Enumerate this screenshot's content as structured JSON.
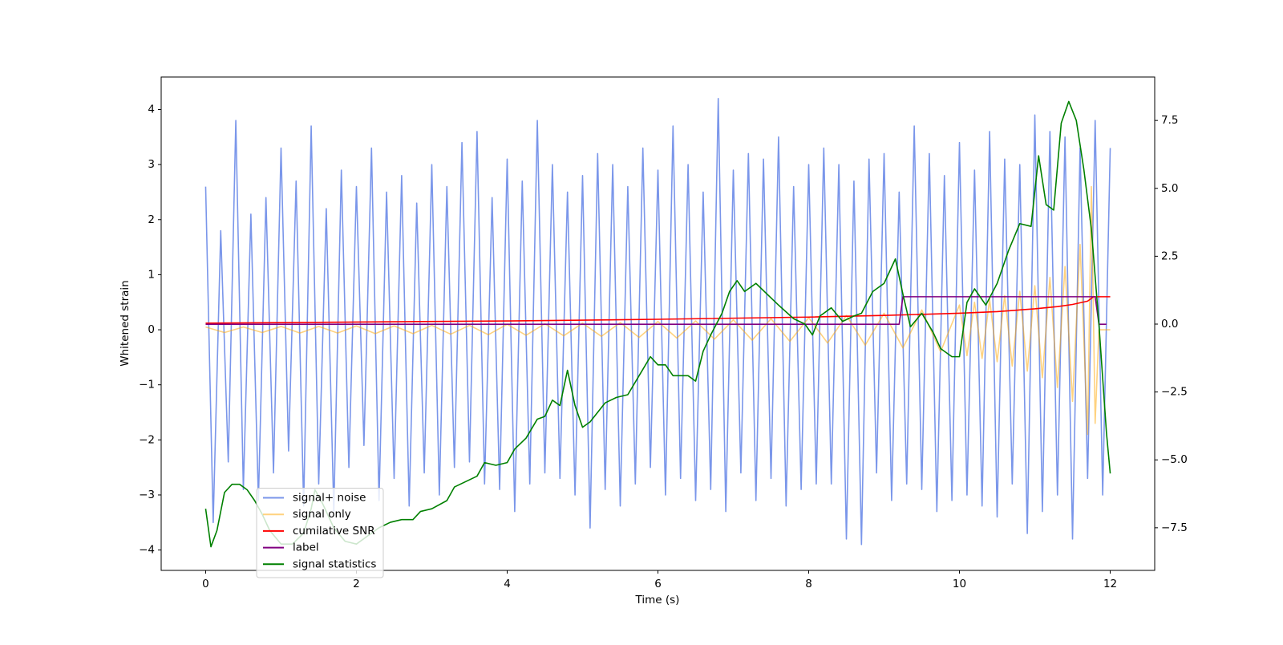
{
  "chart_data": {
    "type": "line",
    "xlabel": "Time (s)",
    "ylabel": "Whitened strain",
    "xlim": [
      -0.59,
      12.59
    ],
    "ylim": [
      -4.37,
      4.59
    ],
    "y2lim": [
      -9.07,
      9.1
    ],
    "xticks": [
      0,
      2,
      4,
      6,
      8,
      10,
      12
    ],
    "yticks": [
      {
        "value": -4,
        "label": "−4"
      },
      {
        "value": -3,
        "label": "−3"
      },
      {
        "value": -2,
        "label": "−2"
      },
      {
        "value": -1,
        "label": "−1"
      },
      0,
      1,
      2,
      3,
      4
    ],
    "y2ticks": [
      {
        "value": -7.5,
        "label": "−7.5"
      },
      {
        "value": -5,
        "label": "−5.0"
      },
      {
        "value": -2.5,
        "label": "−2.5"
      },
      {
        "value": 0,
        "label": "0.0"
      },
      2.5,
      {
        "value": 5,
        "label": "5.0"
      },
      7.5
    ],
    "legend": "lower left",
    "series": [
      {
        "name": "signal+ noise",
        "color": "#4169e1",
        "alpha": 0.7,
        "x": [
          0,
          0.1,
          0.2,
          0.3,
          0.4,
          0.5,
          0.6,
          0.7,
          0.8,
          0.9,
          1,
          1.1,
          1.2,
          1.3,
          1.4,
          1.5,
          1.6,
          1.7,
          1.8,
          1.9,
          2,
          2.1,
          2.2,
          2.3,
          2.4,
          2.5,
          2.6,
          2.7,
          2.8,
          2.9,
          3,
          3.1,
          3.2,
          3.3,
          3.4,
          3.5,
          3.6,
          3.7,
          3.8,
          3.9,
          4,
          4.1,
          4.2,
          4.3,
          4.4,
          4.5,
          4.6,
          4.7,
          4.8,
          4.9,
          5,
          5.1,
          5.2,
          5.3,
          5.4,
          5.5,
          5.6,
          5.7,
          5.8,
          5.9,
          6,
          6.1,
          6.2,
          6.3,
          6.4,
          6.5,
          6.6,
          6.7,
          6.8,
          6.9,
          7,
          7.1,
          7.2,
          7.3,
          7.4,
          7.5,
          7.6,
          7.7,
          7.8,
          7.9,
          8,
          8.1,
          8.2,
          8.3,
          8.4,
          8.5,
          8.6,
          8.7,
          8.8,
          8.9,
          9,
          9.1,
          9.2,
          9.3,
          9.4,
          9.5,
          9.6,
          9.7,
          9.8,
          9.9,
          10,
          10.1,
          10.2,
          10.3,
          10.4,
          10.5,
          10.6,
          10.7,
          10.8,
          10.9,
          11,
          11.1,
          11.2,
          11.3,
          11.4,
          11.5,
          11.6,
          11.7,
          11.8,
          11.9,
          12
        ],
        "values": [
          2.6,
          -3.5,
          1.8,
          -2.4,
          3.8,
          -2.9,
          2.1,
          -3.1,
          2.4,
          -2.6,
          3.3,
          -2.2,
          2.7,
          -3.2,
          3.7,
          -2.8,
          2.2,
          -3.3,
          2.9,
          -2.5,
          2.6,
          -2.1,
          3.3,
          -3.1,
          2.5,
          -2.7,
          2.8,
          -3.2,
          2.3,
          -2.6,
          3.0,
          -3.0,
          2.6,
          -2.5,
          3.4,
          -2.4,
          3.6,
          -2.8,
          2.4,
          -2.9,
          3.1,
          -3.3,
          2.7,
          -2.8,
          3.8,
          -2.6,
          3.0,
          -2.7,
          2.5,
          -3.0,
          2.8,
          -3.6,
          3.2,
          -2.9,
          3.0,
          -3.2,
          2.6,
          -2.8,
          3.3,
          -2.5,
          2.9,
          -3.0,
          3.7,
          -2.7,
          3.0,
          -3.1,
          2.5,
          -2.9,
          4.2,
          -3.3,
          2.9,
          -2.6,
          3.2,
          -3.1,
          3.1,
          -2.7,
          3.5,
          -3.2,
          2.6,
          -2.9,
          3.0,
          -2.8,
          3.3,
          -2.8,
          3.0,
          -3.8,
          2.7,
          -3.9,
          3.1,
          -2.6,
          3.2,
          -3.1,
          2.5,
          -2.8,
          3.7,
          -2.9,
          3.2,
          -3.3,
          2.8,
          -3.1,
          3.4,
          -3.0,
          2.9,
          -3.2,
          3.6,
          -3.4,
          3.1,
          -2.8,
          3.0,
          -3.7,
          3.9,
          -3.3,
          3.6,
          -3.0,
          3.5,
          -3.8,
          3.3,
          -2.7,
          3.8,
          -3.0,
          3.3
        ]
      },
      {
        "name": "signal only",
        "color": "#ffa500",
        "alpha": 0.5,
        "x": [
          0,
          0.25,
          0.5,
          0.75,
          1,
          1.25,
          1.5,
          1.75,
          2,
          2.25,
          2.5,
          2.75,
          3,
          3.25,
          3.5,
          3.75,
          4,
          4.25,
          4.5,
          4.75,
          5,
          5.25,
          5.5,
          5.75,
          6,
          6.25,
          6.5,
          6.75,
          7,
          7.25,
          7.5,
          7.75,
          8,
          8.25,
          8.5,
          8.75,
          9,
          9.25,
          9.5,
          9.75,
          10,
          10.1,
          10.2,
          10.3,
          10.4,
          10.5,
          10.6,
          10.7,
          10.8,
          10.9,
          11,
          11.1,
          11.2,
          11.3,
          11.4,
          11.5,
          11.6,
          11.7,
          11.75,
          11.8,
          11.85,
          12
        ],
        "values": [
          0.05,
          -0.05,
          0.05,
          -0.05,
          0.06,
          -0.06,
          0.06,
          -0.06,
          0.07,
          -0.07,
          0.07,
          -0.07,
          0.08,
          -0.08,
          0.08,
          -0.09,
          0.1,
          -0.1,
          0.11,
          -0.11,
          0.12,
          -0.12,
          0.13,
          -0.14,
          0.15,
          -0.15,
          0.16,
          -0.17,
          0.18,
          -0.19,
          0.2,
          -0.21,
          0.22,
          -0.24,
          0.26,
          -0.28,
          0.3,
          -0.33,
          0.36,
          -0.4,
          0.45,
          -0.47,
          0.5,
          -0.52,
          0.55,
          -0.58,
          0.62,
          -0.66,
          0.7,
          -0.75,
          0.8,
          -0.87,
          0.95,
          -1.05,
          1.15,
          -1.3,
          1.55,
          -1.9,
          2.6,
          -1.7,
          0,
          0
        ]
      },
      {
        "name": "cumilative SNR",
        "color": "#ff0000",
        "x": [
          0,
          2,
          4,
          6,
          8,
          9,
          10,
          10.5,
          11,
          11.3,
          11.5,
          11.7,
          11.78,
          11.8,
          12
        ],
        "values": [
          0.12,
          0.14,
          0.16,
          0.19,
          0.23,
          0.26,
          0.3,
          0.33,
          0.38,
          0.42,
          0.46,
          0.52,
          0.6,
          0.6,
          0.6
        ]
      },
      {
        "name": "label",
        "color": "#800080",
        "x": [
          0,
          9.2,
          9.25,
          11.8,
          11.85,
          11.95
        ],
        "values": [
          0.1,
          0.1,
          0.6,
          0.6,
          0.1,
          0.1
        ]
      },
      {
        "name": "signal statistics",
        "color": "#008000",
        "axis": "y2",
        "x": [
          0,
          0.07,
          0.15,
          0.25,
          0.35,
          0.45,
          0.55,
          0.65,
          0.75,
          0.85,
          1.0,
          1.15,
          1.3,
          1.4,
          1.45,
          1.55,
          1.7,
          1.85,
          2.0,
          2.15,
          2.3,
          2.45,
          2.6,
          2.75,
          2.85,
          3.0,
          3.2,
          3.3,
          3.45,
          3.6,
          3.7,
          3.85,
          4.0,
          4.1,
          4.25,
          4.4,
          4.5,
          4.6,
          4.7,
          4.8,
          4.9,
          5.0,
          5.1,
          5.3,
          5.45,
          5.6,
          5.75,
          5.9,
          6.0,
          6.1,
          6.2,
          6.4,
          6.5,
          6.6,
          6.7,
          6.85,
          6.95,
          7.05,
          7.15,
          7.3,
          7.45,
          7.6,
          7.8,
          7.95,
          8.05,
          8.15,
          8.3,
          8.45,
          8.6,
          8.7,
          8.85,
          9.0,
          9.15,
          9.25,
          9.35,
          9.5,
          9.65,
          9.75,
          9.9,
          10.0,
          10.1,
          10.2,
          10.35,
          10.5,
          10.65,
          10.8,
          10.95,
          11.05,
          11.15,
          11.25,
          11.35,
          11.45,
          11.55,
          11.65,
          11.75,
          11.85,
          11.95,
          12.0
        ],
        "values": [
          -6.8,
          -8.2,
          -7.6,
          -6.2,
          -5.9,
          -5.9,
          -6.1,
          -6.5,
          -7.0,
          -7.6,
          -8.1,
          -8.1,
          -7.7,
          -6.8,
          -6.1,
          -6.6,
          -7.5,
          -8.0,
          -8.1,
          -7.8,
          -7.5,
          -7.3,
          -7.2,
          -7.2,
          -6.9,
          -6.8,
          -6.5,
          -6.0,
          -5.8,
          -5.6,
          -5.1,
          -5.2,
          -5.1,
          -4.6,
          -4.2,
          -3.5,
          -3.4,
          -2.8,
          -3.0,
          -1.7,
          -3.0,
          -3.8,
          -3.6,
          -2.9,
          -2.7,
          -2.6,
          -1.9,
          -1.2,
          -1.5,
          -1.5,
          -1.9,
          -1.9,
          -2.1,
          -1.0,
          -0.4,
          0.4,
          1.2,
          1.6,
          1.2,
          1.5,
          1.1,
          0.7,
          0.2,
          0.0,
          -0.4,
          0.3,
          0.6,
          0.1,
          0.3,
          0.4,
          1.2,
          1.5,
          2.4,
          1.1,
          -0.1,
          0.4,
          -0.3,
          -0.9,
          -1.2,
          -1.2,
          0.8,
          1.3,
          0.7,
          1.5,
          2.7,
          3.7,
          3.6,
          6.2,
          4.4,
          4.2,
          7.4,
          8.2,
          7.5,
          5.7,
          3.5,
          0.0,
          -4.0,
          -5.5
        ]
      }
    ]
  }
}
